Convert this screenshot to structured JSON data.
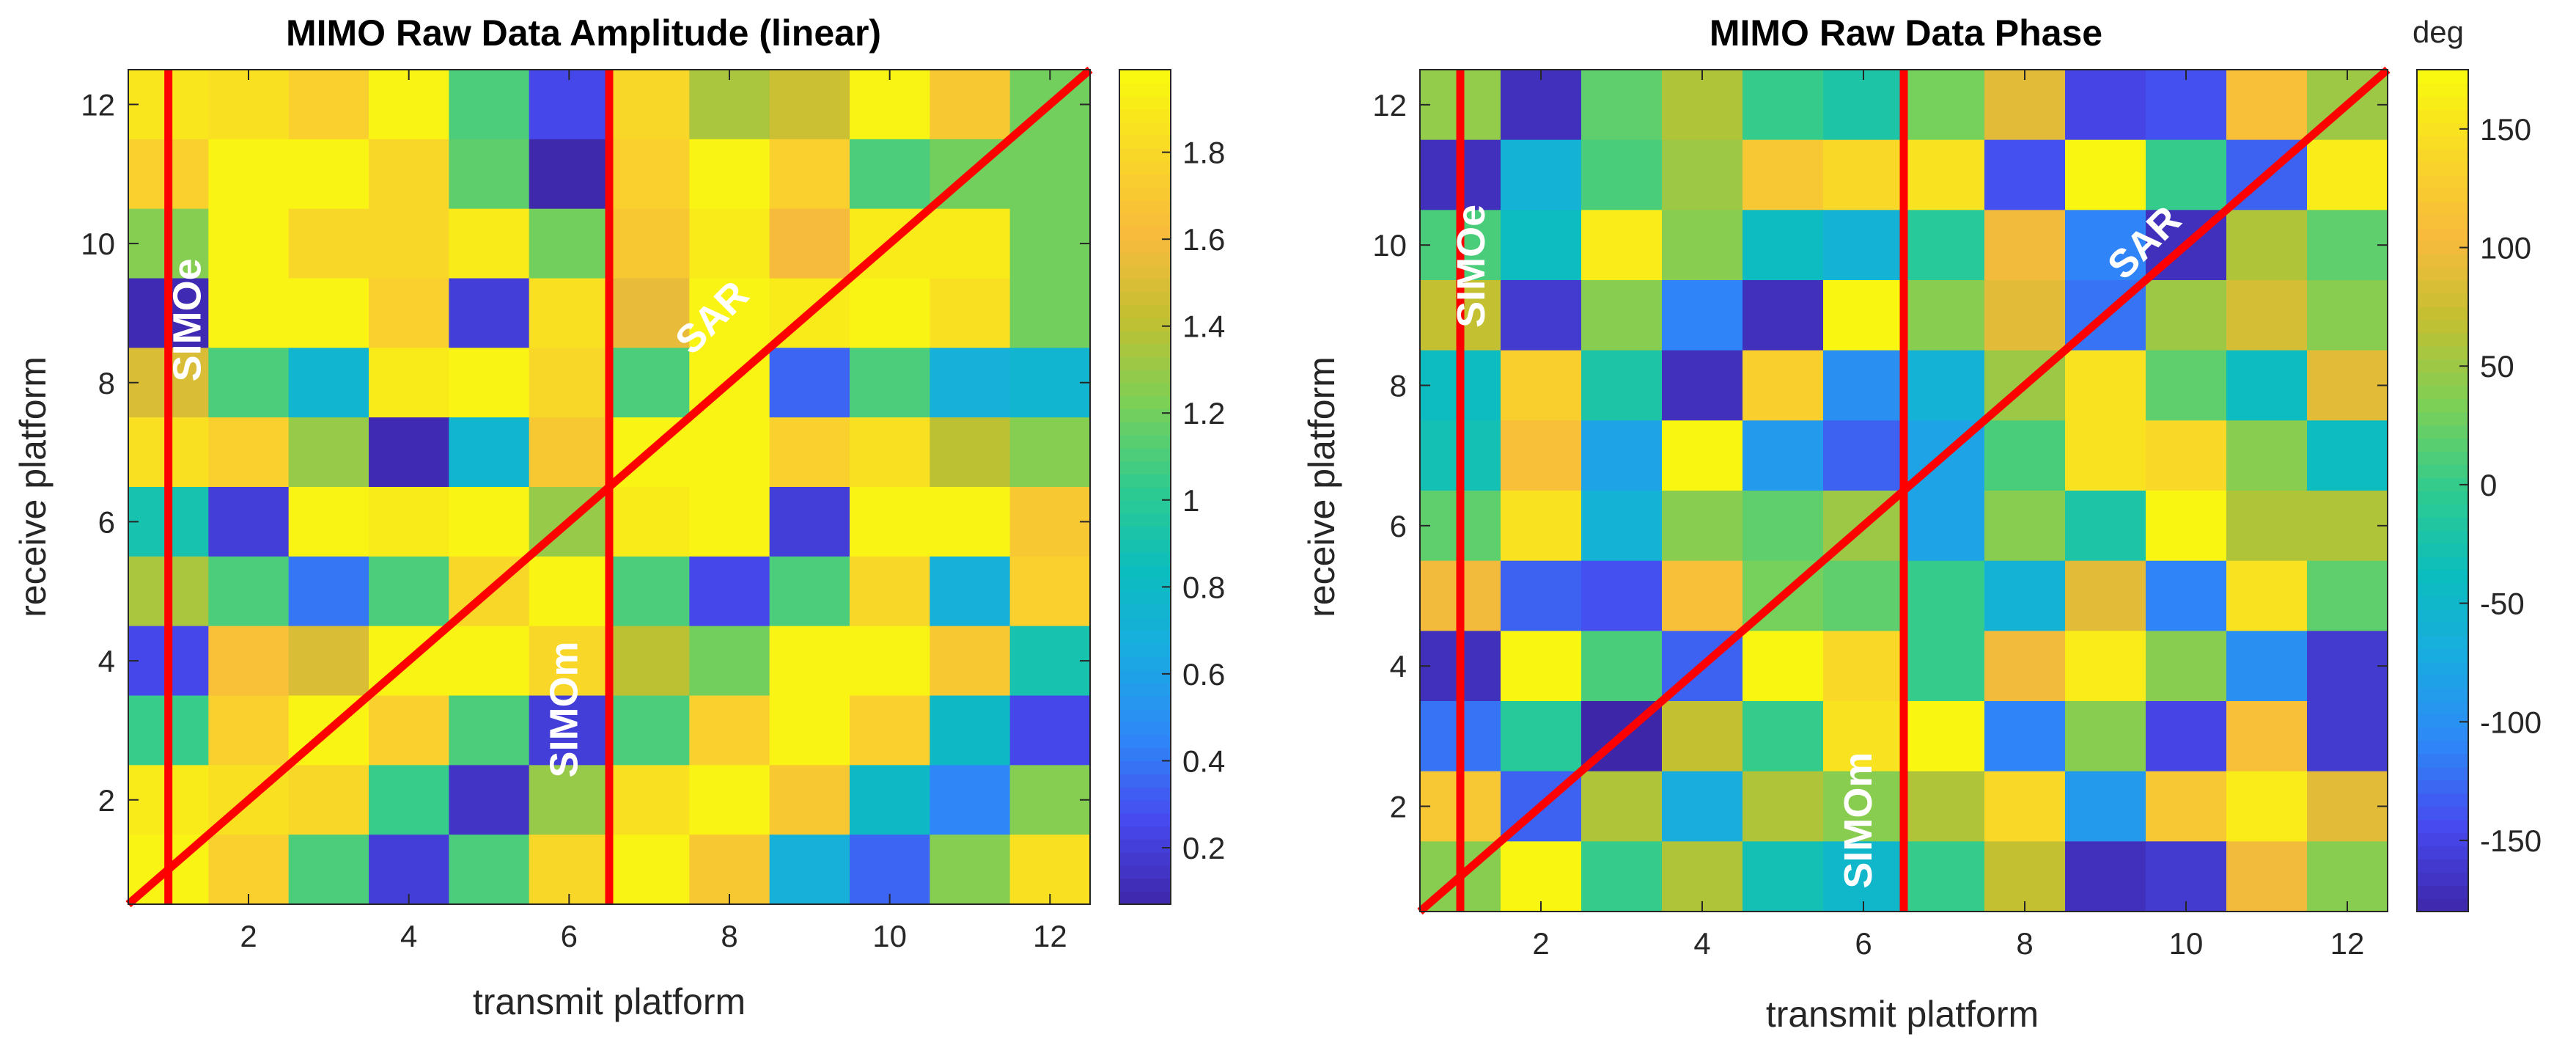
{
  "chart_data": [
    {
      "type": "heatmap",
      "title": "MIMO Raw Data Amplitude (linear)",
      "xlabel": "transmit platform",
      "ylabel": "receive platform",
      "xlim": [
        0.5,
        12.5
      ],
      "ylim": [
        0.5,
        12.5
      ],
      "xticks": [
        "2",
        "4",
        "6",
        "8",
        "10",
        "12"
      ],
      "yticks": [
        "2",
        "4",
        "6",
        "8",
        "10",
        "12"
      ],
      "colorbar": {
        "label": "",
        "range": [
          0.07,
          1.99
        ],
        "ticks": [
          "0.2",
          "0.4",
          "0.6",
          "0.8",
          "1",
          "1.2",
          "1.4",
          "1.6",
          "1.8"
        ]
      },
      "values": [
        [
          1.88,
          1.85,
          1.75,
          1.95,
          1.1,
          0.25,
          1.8,
          1.35,
          1.45,
          1.95,
          1.7,
          1.2
        ],
        [
          1.75,
          1.95,
          1.95,
          1.8,
          1.15,
          0.08,
          1.75,
          1.95,
          1.75,
          1.1,
          1.2,
          1.2
        ],
        [
          1.25,
          1.95,
          1.8,
          1.8,
          1.9,
          1.2,
          1.7,
          1.9,
          1.6,
          1.9,
          1.9,
          1.2
        ],
        [
          0.1,
          1.95,
          1.95,
          1.75,
          0.2,
          1.85,
          1.55,
          1.95,
          1.9,
          1.95,
          1.85,
          1.2
        ],
        [
          1.5,
          1.1,
          0.75,
          1.9,
          1.95,
          1.8,
          1.1,
          1.95,
          0.35,
          1.1,
          0.7,
          0.75
        ],
        [
          1.85,
          1.75,
          1.3,
          0.1,
          0.75,
          1.7,
          1.95,
          1.95,
          1.75,
          1.85,
          1.4,
          1.25
        ],
        [
          0.9,
          0.2,
          1.95,
          1.9,
          1.95,
          1.3,
          1.9,
          1.95,
          0.2,
          1.95,
          1.95,
          1.7
        ],
        [
          1.35,
          1.1,
          0.4,
          1.1,
          1.8,
          1.95,
          1.1,
          0.25,
          1.1,
          1.8,
          0.7,
          1.75
        ],
        [
          0.25,
          1.65,
          1.5,
          1.95,
          1.95,
          1.8,
          1.4,
          1.2,
          1.95,
          1.95,
          1.7,
          0.9
        ],
        [
          1.05,
          1.75,
          1.95,
          1.75,
          1.1,
          0.2,
          1.1,
          1.75,
          1.95,
          1.75,
          0.8,
          0.25
        ],
        [
          1.9,
          1.85,
          1.8,
          1.05,
          0.15,
          1.3,
          1.85,
          1.95,
          1.7,
          0.8,
          0.45,
          1.25
        ],
        [
          1.95,
          1.75,
          1.1,
          0.2,
          1.1,
          1.8,
          1.95,
          1.7,
          0.7,
          0.35,
          1.25,
          1.85
        ]
      ],
      "overlays": [
        {
          "label": "SIMOe",
          "type": "vertical",
          "x": 1
        },
        {
          "label": "SIMOm",
          "type": "vertical",
          "x": 6.5
        },
        {
          "label": "SAR",
          "type": "diagonal",
          "x": [
            0.5,
            12.5
          ],
          "y": [
            0.5,
            12.5
          ]
        }
      ]
    },
    {
      "type": "heatmap",
      "title": "MIMO Raw Data Phase",
      "xlabel": "transmit platform",
      "ylabel": "receive platform",
      "xlim": [
        0.5,
        12.5
      ],
      "ylim": [
        0.5,
        12.5
      ],
      "xticks": [
        "2",
        "4",
        "6",
        "8",
        "10",
        "12"
      ],
      "yticks": [
        "2",
        "4",
        "6",
        "8",
        "10",
        "12"
      ],
      "colorbar": {
        "label": "deg",
        "range": [
          -180,
          175
        ],
        "ticks": [
          "-150",
          "-100",
          "-50",
          "0",
          "50",
          "100",
          "150"
        ]
      },
      "values": [
        [
          45,
          -170,
          20,
          60,
          0,
          -20,
          30,
          90,
          -150,
          -140,
          110,
          50
        ],
        [
          -170,
          -60,
          10,
          50,
          120,
          140,
          150,
          -140,
          170,
          0,
          -130,
          160
        ],
        [
          10,
          -40,
          160,
          40,
          -40,
          -60,
          -10,
          100,
          -110,
          -170,
          60,
          20
        ],
        [
          70,
          -160,
          40,
          -110,
          -170,
          170,
          40,
          90,
          -120,
          50,
          80,
          40
        ],
        [
          -40,
          130,
          -20,
          -170,
          130,
          -100,
          -60,
          50,
          150,
          20,
          -40,
          90
        ],
        [
          -30,
          110,
          -80,
          170,
          -90,
          -130,
          -80,
          10,
          150,
          140,
          40,
          -40
        ],
        [
          20,
          150,
          -60,
          40,
          20,
          50,
          -80,
          40,
          -20,
          170,
          60,
          60
        ],
        [
          100,
          -130,
          -140,
          110,
          30,
          20,
          0,
          -60,
          90,
          -110,
          150,
          20
        ],
        [
          -170,
          170,
          10,
          -130,
          170,
          140,
          0,
          100,
          160,
          40,
          -100,
          -160
        ],
        [
          -120,
          -10,
          -180,
          70,
          0,
          150,
          170,
          -110,
          40,
          -150,
          110,
          -160
        ],
        [
          120,
          -130,
          60,
          -70,
          60,
          40,
          60,
          140,
          -90,
          120,
          160,
          90
        ],
        [
          40,
          170,
          0,
          60,
          -30,
          -50,
          0,
          70,
          -170,
          -160,
          100,
          40
        ]
      ],
      "overlays": [
        {
          "label": "SIMOe",
          "type": "vertical",
          "x": 1
        },
        {
          "label": "SIMOm",
          "type": "vertical",
          "x": 6.5
        },
        {
          "label": "SAR",
          "type": "diagonal",
          "x": [
            0.5,
            12.5
          ],
          "y": [
            0.5,
            12.5
          ]
        }
      ]
    }
  ],
  "colors": {
    "overlay_line": "#ff0000",
    "annotation_text": "#ffffff",
    "text": "#262626"
  }
}
